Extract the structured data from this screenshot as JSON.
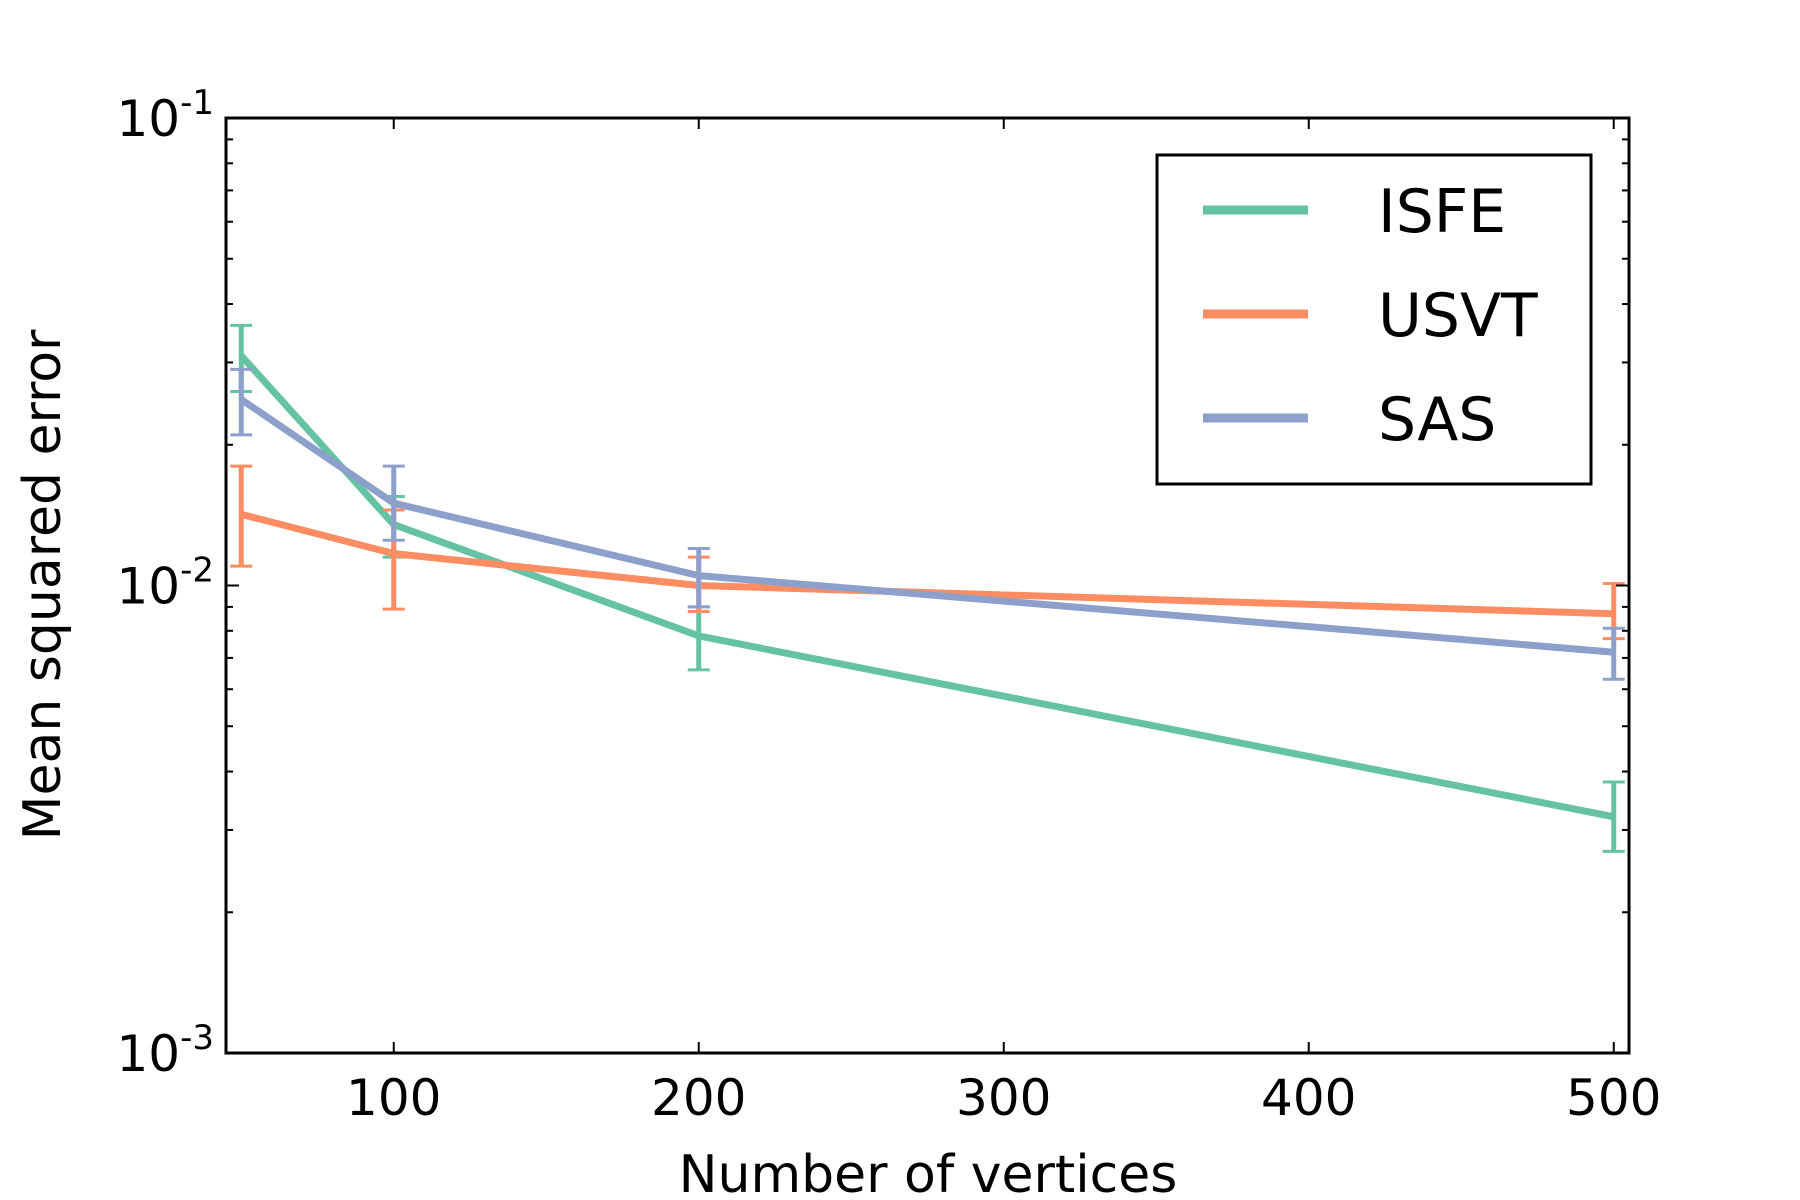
{
  "chart_data": {
    "type": "line",
    "title": "",
    "xlabel": "Number of vertices",
    "ylabel": "Mean squared error",
    "xscale": "linear",
    "yscale": "log",
    "xlim": [
      45,
      505
    ],
    "ylim": [
      0.001,
      0.1
    ],
    "x_ticks": [
      100,
      200,
      300,
      400,
      500
    ],
    "x_tick_labels": [
      "100",
      "200",
      "300",
      "400",
      "500"
    ],
    "y_ticks": [
      {
        "value": 0.001,
        "base": "10",
        "exp": "-3"
      },
      {
        "value": 0.01,
        "base": "10",
        "exp": "-2"
      },
      {
        "value": 0.1,
        "base": "10",
        "exp": "-1"
      }
    ],
    "grid": false,
    "legend_position": "top-right",
    "x": [
      50,
      100,
      200,
      500
    ],
    "series": [
      {
        "name": "ISFE",
        "color": "#66c2a5",
        "values": [
          0.031,
          0.0135,
          0.0078,
          0.0032
        ],
        "err_low": [
          0.026,
          0.0115,
          0.0066,
          0.0027
        ],
        "err_high": [
          0.036,
          0.0155,
          0.009,
          0.0038
        ]
      },
      {
        "name": "USVT",
        "color": "#fc8d62",
        "values": [
          0.0142,
          0.0117,
          0.01,
          0.0087
        ],
        "err_low": [
          0.011,
          0.0089,
          0.0088,
          0.0077
        ],
        "err_high": [
          0.018,
          0.0145,
          0.0115,
          0.0101
        ]
      },
      {
        "name": "SAS",
        "color": "#8da0cb",
        "values": [
          0.025,
          0.015,
          0.0105,
          0.0072
        ],
        "err_low": [
          0.021,
          0.0125,
          0.009,
          0.0063
        ],
        "err_high": [
          0.029,
          0.018,
          0.012,
          0.0081
        ]
      }
    ]
  }
}
